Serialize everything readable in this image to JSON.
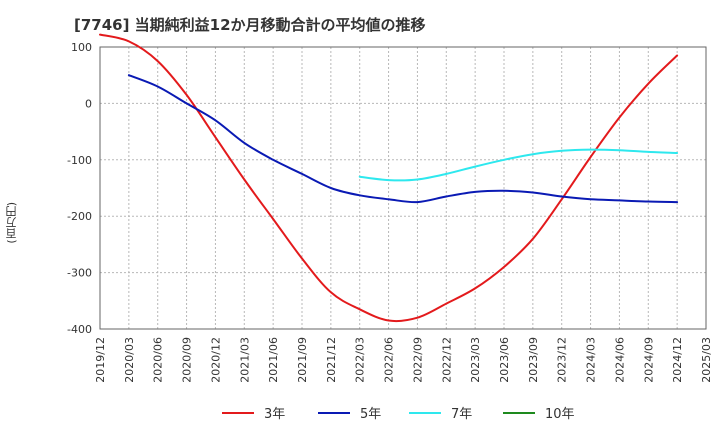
{
  "chart_data": {
    "type": "line",
    "title": "[7746]  当期純利益12か月移動合計の平均値の推移",
    "ylabel": "(百万円)",
    "ylim": [
      -400,
      100
    ],
    "yticks": [
      100,
      0,
      -100,
      -200,
      -300,
      -400
    ],
    "x_start": "2019/12",
    "x_end": "2025/03",
    "xticks": [
      "2019/12",
      "2020/03",
      "2020/06",
      "2020/09",
      "2020/12",
      "2021/03",
      "2021/06",
      "2021/09",
      "2021/12",
      "2022/03",
      "2022/06",
      "2022/09",
      "2022/12",
      "2023/03",
      "2023/06",
      "2023/09",
      "2023/12",
      "2024/03",
      "2024/06",
      "2024/09",
      "2024/12",
      "2025/03"
    ],
    "grid": true,
    "legend_position": "bottom",
    "series": [
      {
        "name": "3年",
        "color": "#e31a1c",
        "x": [
          "2019/12",
          "2020/03",
          "2020/06",
          "2020/09",
          "2020/12",
          "2021/03",
          "2021/06",
          "2021/09",
          "2021/12",
          "2022/03",
          "2022/06",
          "2022/09",
          "2022/12",
          "2023/03",
          "2023/06",
          "2023/09",
          "2023/12",
          "2024/03",
          "2024/06",
          "2024/09",
          "2024/12"
        ],
        "values": [
          122,
          110,
          75,
          15,
          -60,
          -135,
          -205,
          -275,
          -335,
          -365,
          -385,
          -380,
          -355,
          -328,
          -290,
          -240,
          -170,
          -95,
          -25,
          35,
          85
        ]
      },
      {
        "name": "5年",
        "color": "#0a1ab4",
        "x": [
          "2020/03",
          "2020/06",
          "2020/09",
          "2020/12",
          "2021/03",
          "2021/06",
          "2021/09",
          "2021/12",
          "2022/03",
          "2022/06",
          "2022/09",
          "2022/12",
          "2023/03",
          "2023/06",
          "2023/09",
          "2023/12",
          "2024/03",
          "2024/06",
          "2024/09",
          "2024/12"
        ],
        "values": [
          50,
          30,
          0,
          -30,
          -70,
          -100,
          -125,
          -150,
          -163,
          -170,
          -175,
          -165,
          -157,
          -155,
          -158,
          -165,
          -170,
          -172,
          -174,
          -175
        ]
      },
      {
        "name": "7年",
        "color": "#2ee8ee",
        "x": [
          "2022/03",
          "2022/06",
          "2022/09",
          "2022/12",
          "2023/03",
          "2023/06",
          "2023/09",
          "2023/12",
          "2024/03",
          "2024/06",
          "2024/09",
          "2024/12"
        ],
        "values": [
          -130,
          -136,
          -135,
          -125,
          -112,
          -100,
          -90,
          -84,
          -82,
          -83,
          -86,
          -88
        ]
      },
      {
        "name": "10年",
        "color": "#1e8a1e",
        "x": [],
        "values": []
      }
    ]
  }
}
